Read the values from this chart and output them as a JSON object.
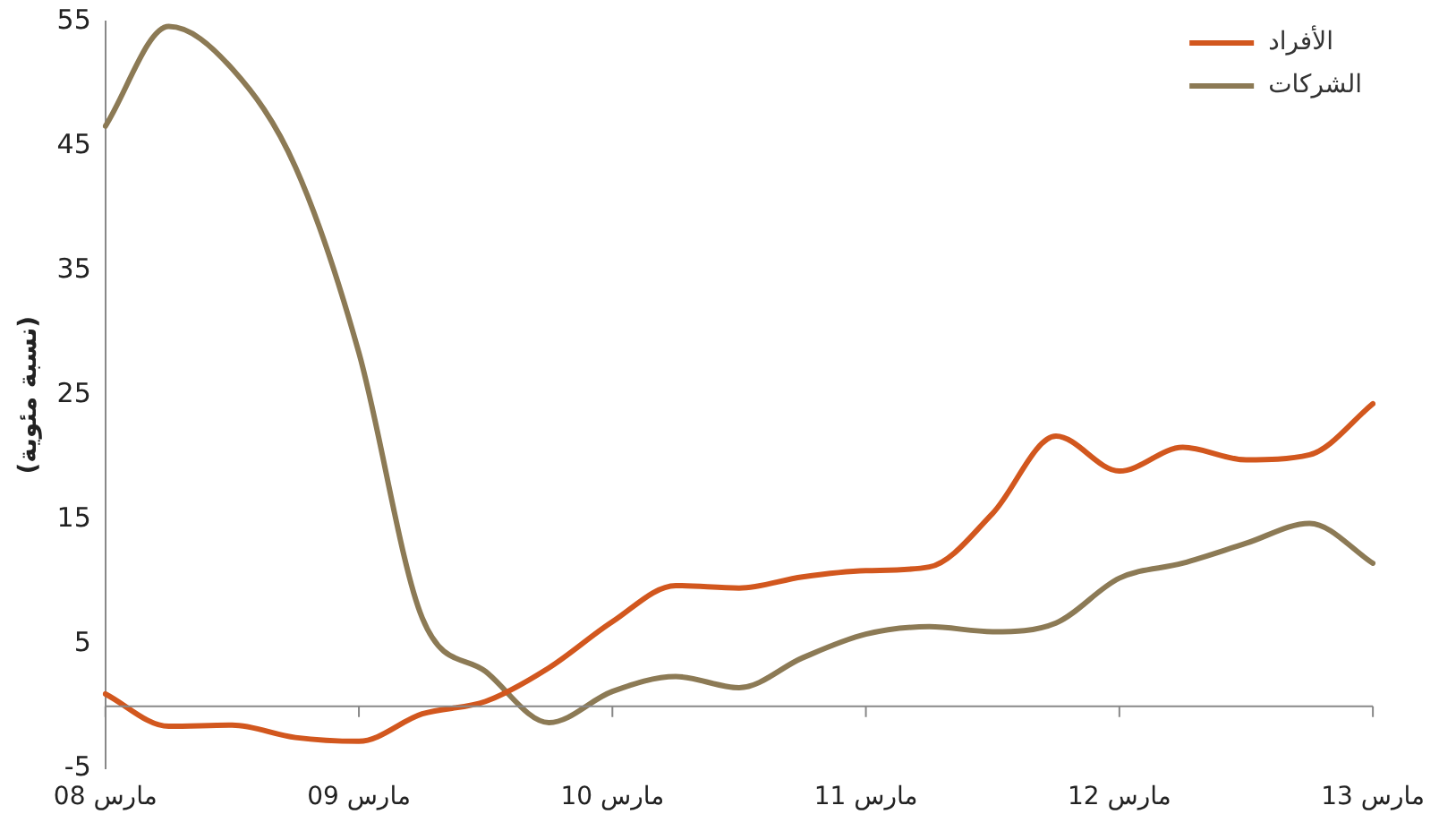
{
  "chart_data": {
    "type": "line",
    "ylabel": "(نسبة مئوية)",
    "categories": [
      "مارس 08",
      null,
      null,
      null,
      "مارس 09",
      null,
      null,
      null,
      "مارس 10",
      null,
      null,
      null,
      "مارس 11",
      null,
      null,
      null,
      "مارس 12",
      null,
      null,
      null,
      "مارس 13"
    ],
    "series": [
      {
        "name": "الأفراد",
        "color": "#d2571e",
        "values": [
          1.0,
          -1.6,
          -1.5,
          -2.5,
          -2.8,
          -0.6,
          0.4,
          3.1,
          6.8,
          9.7,
          9.5,
          10.4,
          10.9,
          11.2,
          15.5,
          21.7,
          18.9,
          20.8,
          19.8,
          20.2,
          24.3
        ]
      },
      {
        "name": "الشركات",
        "color": "#8c7a55",
        "values": [
          46.6,
          54.6,
          51.2,
          43.3,
          28.4,
          7.1,
          2.8,
          -1.3,
          1.2,
          2.4,
          1.5,
          3.9,
          5.8,
          6.4,
          6.0,
          6.7,
          10.3,
          11.5,
          13.1,
          14.7,
          11.5
        ]
      }
    ],
    "ylim": [
      -5,
      55
    ],
    "yticks": [
      -5,
      5,
      15,
      25,
      35,
      45,
      55
    ],
    "grid": false,
    "legend": "top right",
    "marker": "none",
    "line_style": "solid"
  }
}
